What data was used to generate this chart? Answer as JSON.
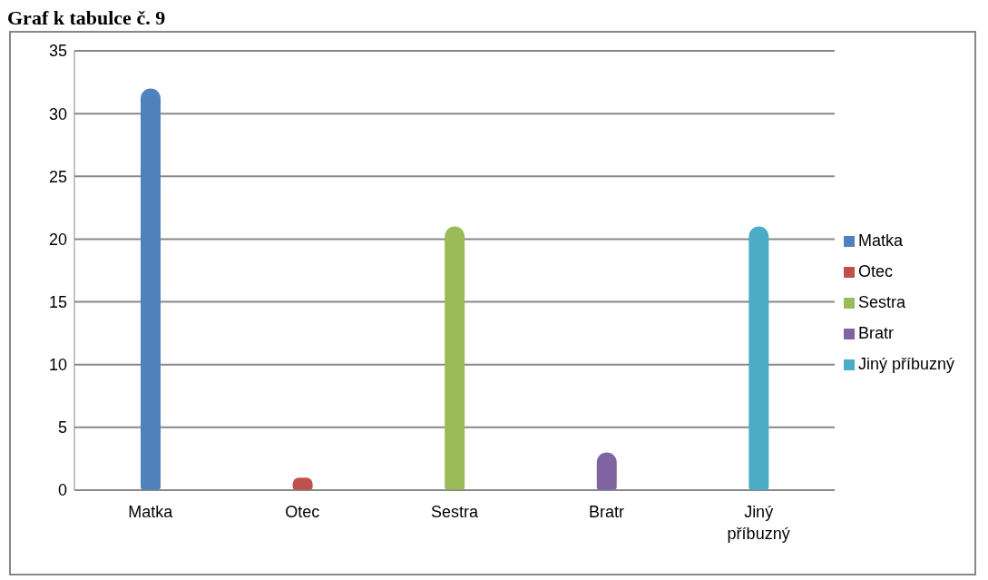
{
  "chart_data": {
    "type": "bar",
    "title": "Graf k tabulce č. 9",
    "categories": [
      "Matka",
      "Otec",
      "Sestra",
      "Bratr",
      "Jiný příbuzný"
    ],
    "stacked": true,
    "series": [
      {
        "name": "Matka",
        "color": "#4f81bd",
        "values": [
          32,
          null,
          null,
          null,
          null
        ]
      },
      {
        "name": "Otec",
        "color": "#c0504d",
        "values": [
          null,
          1,
          null,
          null,
          null
        ]
      },
      {
        "name": "Sestra",
        "color": "#9bbb59",
        "values": [
          null,
          null,
          21,
          null,
          null
        ]
      },
      {
        "name": "Bratr",
        "color": "#8064a2",
        "values": [
          null,
          null,
          null,
          3,
          null
        ]
      },
      {
        "name": "Jiný příbuzný",
        "color": "#4bacc6",
        "values": [
          null,
          null,
          null,
          null,
          21
        ]
      }
    ],
    "ylim": [
      0,
      35
    ],
    "yticks": [
      0,
      5,
      10,
      15,
      20,
      25,
      30,
      35
    ],
    "grid": "y",
    "legend": "right"
  }
}
